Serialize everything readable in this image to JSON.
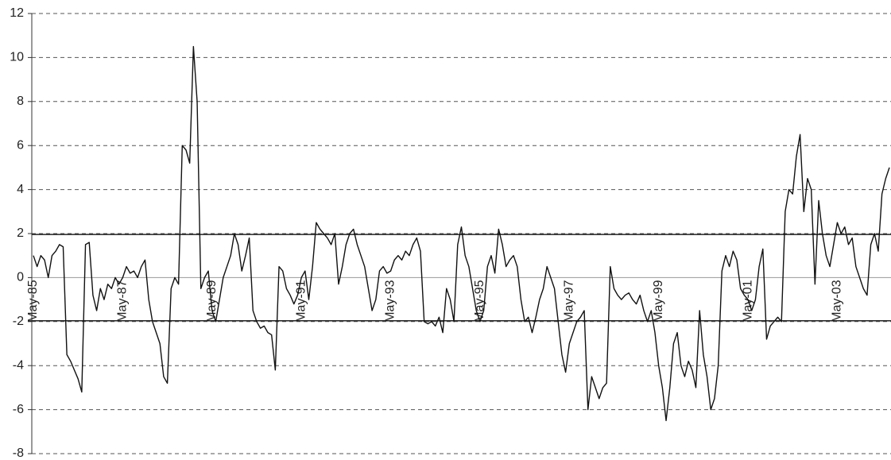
{
  "chart_data": {
    "type": "line",
    "color": "#111111",
    "grid": true,
    "ylim": [
      -8,
      12
    ],
    "yticks": [
      -8,
      -6,
      -4,
      -2,
      0,
      2,
      4,
      6,
      8,
      10,
      12
    ],
    "reference_lines": [
      1.96,
      -1.96
    ],
    "categories": [
      "May-85",
      null,
      null,
      null,
      null,
      null,
      null,
      null,
      null,
      null,
      null,
      null,
      null,
      null,
      null,
      null,
      null,
      null,
      null,
      null,
      null,
      null,
      null,
      null,
      "May-87",
      null,
      null,
      null,
      null,
      null,
      null,
      null,
      null,
      null,
      null,
      null,
      null,
      null,
      null,
      null,
      null,
      null,
      null,
      null,
      null,
      null,
      null,
      null,
      "May-89",
      null,
      null,
      null,
      null,
      null,
      null,
      null,
      null,
      null,
      null,
      null,
      null,
      null,
      null,
      null,
      null,
      null,
      null,
      null,
      null,
      null,
      null,
      null,
      "May-91",
      null,
      null,
      null,
      null,
      null,
      null,
      null,
      null,
      null,
      null,
      null,
      null,
      null,
      null,
      null,
      null,
      null,
      null,
      null,
      null,
      null,
      null,
      null,
      "May-93",
      null,
      null,
      null,
      null,
      null,
      null,
      null,
      null,
      null,
      null,
      null,
      null,
      null,
      null,
      null,
      null,
      null,
      null,
      null,
      null,
      null,
      null,
      null,
      "May-95",
      null,
      null,
      null,
      null,
      null,
      null,
      null,
      null,
      null,
      null,
      null,
      null,
      null,
      null,
      null,
      null,
      null,
      null,
      null,
      null,
      null,
      null,
      null,
      "May-97",
      null,
      null,
      null,
      null,
      null,
      null,
      null,
      null,
      null,
      null,
      null,
      null,
      null,
      null,
      null,
      null,
      null,
      null,
      null,
      null,
      null,
      null,
      null,
      "May-99",
      null,
      null,
      null,
      null,
      null,
      null,
      null,
      null,
      null,
      null,
      null,
      null,
      null,
      null,
      null,
      null,
      null,
      null,
      null,
      null,
      null,
      null,
      null,
      "May-01",
      null,
      null,
      null,
      null,
      null,
      null,
      null,
      null,
      null,
      null,
      null,
      null,
      null,
      null,
      null,
      null,
      null,
      null,
      null,
      null,
      null,
      null,
      null,
      "May-03",
      null,
      null,
      null,
      null,
      null,
      null,
      null,
      null,
      null,
      null,
      null,
      null,
      null,
      null
    ],
    "values": [
      1,
      0.5,
      1,
      0.8,
      0,
      1,
      1.2,
      1.5,
      1.4,
      -3.5,
      -3.8,
      -4.2,
      -4.6,
      -5.2,
      1.5,
      1.6,
      -0.8,
      -1.5,
      -0.5,
      -1,
      -0.3,
      -0.5,
      0,
      -0.3,
      0,
      0.5,
      0.2,
      0.3,
      0,
      0.5,
      0.8,
      -1,
      -2,
      -2.5,
      -3,
      -4.5,
      -4.8,
      -0.5,
      0,
      -0.3,
      6,
      5.8,
      5.2,
      10.5,
      8,
      -0.5,
      0,
      0.3,
      -1.5,
      -2,
      -1,
      0,
      0.5,
      1,
      2,
      1.5,
      0.3,
      1,
      1.8,
      -1.5,
      -2,
      -2.3,
      -2.2,
      -2.5,
      -2.6,
      -4.2,
      0.5,
      0.3,
      -0.5,
      -0.8,
      -1.2,
      -0.8,
      0,
      0.3,
      -1,
      0.5,
      2.5,
      2.2,
      2,
      1.8,
      1.5,
      2,
      -0.3,
      0.5,
      1.5,
      2,
      2.2,
      1.5,
      1,
      0.5,
      -0.5,
      -1.5,
      -1,
      0.3,
      0.5,
      0.2,
      0.3,
      0.8,
      1,
      0.8,
      1.2,
      1,
      1.5,
      1.8,
      1.2,
      -2,
      -2.1,
      -2,
      -2.2,
      -1.8,
      -2.5,
      -0.5,
      -1,
      -2,
      1.5,
      2.3,
      1,
      0.5,
      -0.5,
      -1.5,
      -2,
      -1.5,
      0.5,
      1,
      0.2,
      2.2,
      1.5,
      0.5,
      0.8,
      1,
      0.5,
      -1,
      -2,
      -1.8,
      -2.5,
      -1.8,
      -1,
      -0.5,
      0.5,
      0,
      -0.5,
      -2,
      -3.5,
      -4.3,
      -3,
      -2.5,
      -2,
      -1.8,
      -1.5,
      -6,
      -4.5,
      -5,
      -5.5,
      -5,
      -4.8,
      0.5,
      -0.5,
      -0.8,
      -1,
      -0.8,
      -0.7,
      -1,
      -1.2,
      -0.8,
      -1.5,
      -2,
      -1.5,
      -2.5,
      -4,
      -5,
      -6.5,
      -5,
      -3,
      -2.5,
      -4,
      -4.5,
      -3.8,
      -4.2,
      -5,
      -1.5,
      -3.5,
      -4.5,
      -6,
      -5.5,
      -4,
      0.3,
      1,
      0.5,
      1.2,
      0.8,
      -0.5,
      -0.8,
      -1,
      -1.5,
      -1,
      0.5,
      1.3,
      -2.8,
      -2.2,
      -2,
      -1.8,
      -2,
      3,
      4,
      3.8,
      5.5,
      6.5,
      3,
      4.5,
      4,
      -0.3,
      3.5,
      2,
      1,
      0.5,
      1.5,
      2.5,
      2,
      2.3,
      1.5,
      1.8,
      0.5,
      0,
      -0.5,
      -0.8,
      1.5,
      2,
      1.2,
      3.8,
      4.5,
      5
    ]
  }
}
